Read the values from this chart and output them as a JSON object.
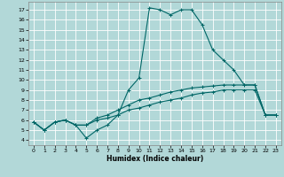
{
  "title": "",
  "xlabel": "Humidex (Indice chaleur)",
  "bg_color": "#b2d8d8",
  "grid_color": "#ffffff",
  "line_color": "#006666",
  "xlim": [
    -0.5,
    23.5
  ],
  "ylim": [
    3.5,
    17.8
  ],
  "xticks": [
    0,
    1,
    2,
    3,
    4,
    5,
    6,
    7,
    8,
    9,
    10,
    11,
    12,
    13,
    14,
    15,
    16,
    17,
    18,
    19,
    20,
    21,
    22,
    23
  ],
  "yticks": [
    4,
    5,
    6,
    7,
    8,
    9,
    10,
    11,
    12,
    13,
    14,
    15,
    16,
    17
  ],
  "series": [
    {
      "x": [
        0,
        1,
        2,
        3,
        4,
        5,
        6,
        7,
        8,
        9,
        10,
        11,
        12,
        13,
        14,
        15,
        16,
        17,
        18,
        19,
        20,
        21,
        22,
        23
      ],
      "y": [
        5.8,
        5.0,
        5.8,
        6.0,
        5.5,
        4.2,
        5.0,
        5.5,
        6.5,
        9.0,
        10.2,
        17.2,
        17.0,
        16.5,
        17.0,
        17.0,
        15.5,
        13.0,
        12.0,
        11.0,
        9.5,
        9.5,
        6.5,
        6.5
      ]
    },
    {
      "x": [
        0,
        1,
        2,
        3,
        4,
        5,
        6,
        7,
        8,
        9,
        10,
        11,
        12,
        13,
        14,
        15,
        16,
        17,
        18,
        19,
        20,
        21,
        22,
        23
      ],
      "y": [
        5.8,
        5.0,
        5.8,
        6.0,
        5.5,
        5.5,
        6.2,
        6.5,
        7.0,
        7.5,
        8.0,
        8.2,
        8.5,
        8.8,
        9.0,
        9.2,
        9.3,
        9.4,
        9.5,
        9.5,
        9.5,
        9.5,
        6.5,
        6.5
      ]
    },
    {
      "x": [
        0,
        1,
        2,
        3,
        4,
        5,
        6,
        7,
        8,
        9,
        10,
        11,
        12,
        13,
        14,
        15,
        16,
        17,
        18,
        19,
        20,
        21,
        22,
        23
      ],
      "y": [
        5.8,
        5.0,
        5.8,
        6.0,
        5.5,
        5.5,
        6.0,
        6.2,
        6.5,
        7.0,
        7.2,
        7.5,
        7.8,
        8.0,
        8.2,
        8.5,
        8.7,
        8.8,
        9.0,
        9.0,
        9.0,
        9.0,
        6.5,
        6.5
      ]
    }
  ],
  "xlabel_fontsize": 5.5,
  "tick_fontsize": 4.5,
  "lw": 0.8,
  "markersize": 2.5
}
